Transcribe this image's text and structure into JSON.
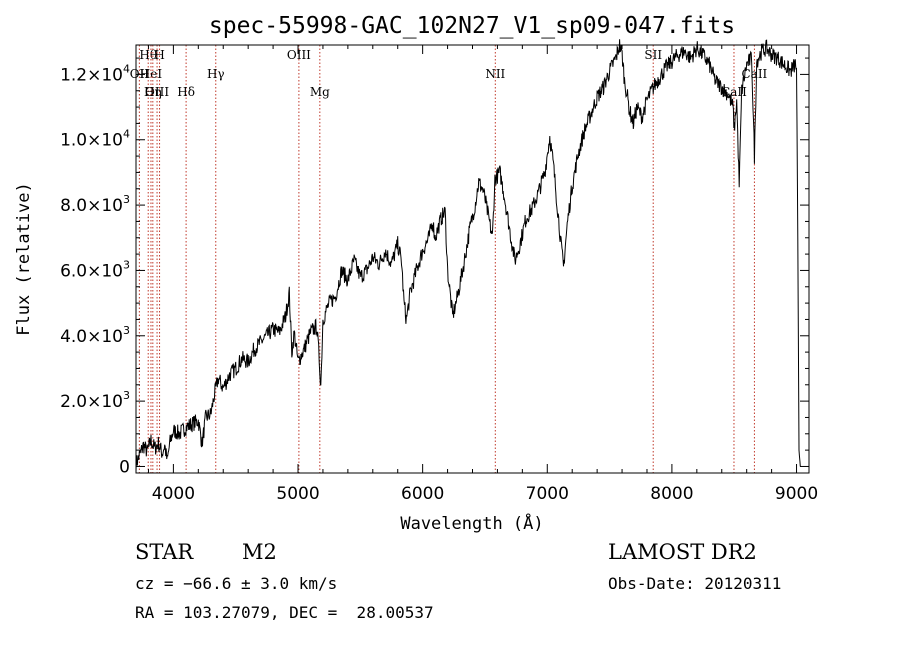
{
  "chart_data": {
    "type": "line",
    "title": "spec-55998-GAC_102N27_V1_sp09-047.fits",
    "xlabel": "Wavelength (Å)",
    "ylabel": "Flux (relative)",
    "xlim": [
      3700,
      9100
    ],
    "ylim": [
      -200,
      12900
    ],
    "x_ticks": [
      {
        "value": 4000,
        "label": "4000"
      },
      {
        "value": 5000,
        "label": "5000"
      },
      {
        "value": 6000,
        "label": "6000"
      },
      {
        "value": 7000,
        "label": "7000"
      },
      {
        "value": 8000,
        "label": "8000"
      },
      {
        "value": 9000,
        "label": "9000"
      }
    ],
    "y_ticks": [
      {
        "value": 0,
        "mant": "0",
        "exp": ""
      },
      {
        "value": 2000,
        "mant": "2.0×10",
        "exp": "3"
      },
      {
        "value": 4000,
        "mant": "4.0×10",
        "exp": "3"
      },
      {
        "value": 6000,
        "mant": "6.0×10",
        "exp": "3"
      },
      {
        "value": 8000,
        "mant": "8.0×10",
        "exp": "3"
      },
      {
        "value": 10000,
        "mant": "1.0×10",
        "exp": "4"
      },
      {
        "value": 12000,
        "mant": "1.2×10",
        "exp": "4"
      }
    ],
    "spectral_lines": [
      {
        "label": "Hθ",
        "x": 3798,
        "row": 0
      },
      {
        "label": "H",
        "x": 3889,
        "row": 0
      },
      {
        "label": "OII",
        "x": 3727,
        "row": 1
      },
      {
        "label": "HeI",
        "x": 3820,
        "row": 1
      },
      {
        "label": "Hγ",
        "x": 4340,
        "row": 1
      },
      {
        "label": "OIII",
        "x": 3869,
        "row": 2
      },
      {
        "label": "Hη",
        "x": 3835,
        "row": 2
      },
      {
        "label": "Hδ",
        "x": 4102,
        "row": 2
      },
      {
        "label": "OIII",
        "x": 5007,
        "row": 0
      },
      {
        "label": "Mg",
        "x": 5175,
        "row": 2
      },
      {
        "label": "NII",
        "x": 6583,
        "row": 1
      },
      {
        "label": "SII",
        "x": 7850,
        "row": 0
      },
      {
        "label": "CaII",
        "x": 8498,
        "row": 2
      },
      {
        "label": "CaII",
        "x": 8662,
        "row": 1
      }
    ],
    "spectrum": [
      [
        3700,
        100
      ],
      [
        3730,
        350
      ],
      [
        3760,
        650
      ],
      [
        3790,
        450
      ],
      [
        3820,
        800
      ],
      [
        3850,
        550
      ],
      [
        3880,
        700
      ],
      [
        3910,
        400
      ],
      [
        3930,
        650
      ],
      [
        3950,
        150
      ],
      [
        3970,
        700
      ],
      [
        4000,
        1100
      ],
      [
        4050,
        1000
      ],
      [
        4100,
        1200
      ],
      [
        4150,
        1300
      ],
      [
        4200,
        1400
      ],
      [
        4230,
        700
      ],
      [
        4260,
        1500
      ],
      [
        4300,
        1600
      ],
      [
        4330,
        2200
      ],
      [
        4360,
        2700
      ],
      [
        4400,
        2400
      ],
      [
        4450,
        2800
      ],
      [
        4500,
        3000
      ],
      [
        4550,
        3300
      ],
      [
        4600,
        3200
      ],
      [
        4650,
        3600
      ],
      [
        4700,
        3800
      ],
      [
        4750,
        4000
      ],
      [
        4800,
        4200
      ],
      [
        4850,
        4100
      ],
      [
        4900,
        4600
      ],
      [
        4930,
        5300
      ],
      [
        4950,
        3500
      ],
      [
        4970,
        4100
      ],
      [
        5000,
        3200
      ],
      [
        5050,
        3600
      ],
      [
        5100,
        4100
      ],
      [
        5150,
        4300
      ],
      [
        5170,
        3300
      ],
      [
        5183,
        2500
      ],
      [
        5200,
        4500
      ],
      [
        5250,
        5000
      ],
      [
        5300,
        5200
      ],
      [
        5350,
        6000
      ],
      [
        5400,
        5700
      ],
      [
        5450,
        6300
      ],
      [
        5500,
        5800
      ],
      [
        5550,
        6000
      ],
      [
        5600,
        6400
      ],
      [
        5650,
        6200
      ],
      [
        5700,
        6600
      ],
      [
        5750,
        6200
      ],
      [
        5800,
        6800
      ],
      [
        5830,
        6300
      ],
      [
        5850,
        5000
      ],
      [
        5870,
        4500
      ],
      [
        5900,
        5300
      ],
      [
        5950,
        6000
      ],
      [
        6000,
        6600
      ],
      [
        6050,
        7000
      ],
      [
        6080,
        7500
      ],
      [
        6100,
        7000
      ],
      [
        6150,
        7600
      ],
      [
        6180,
        7800
      ],
      [
        6200,
        6000
      ],
      [
        6240,
        4600
      ],
      [
        6280,
        5200
      ],
      [
        6330,
        6200
      ],
      [
        6380,
        7300
      ],
      [
        6420,
        8000
      ],
      [
        6450,
        8700
      ],
      [
        6480,
        8500
      ],
      [
        6500,
        8200
      ],
      [
        6530,
        7600
      ],
      [
        6560,
        7000
      ],
      [
        6580,
        8800
      ],
      [
        6620,
        9000
      ],
      [
        6650,
        8400
      ],
      [
        6700,
        7200
      ],
      [
        6740,
        6300
      ],
      [
        6780,
        6800
      ],
      [
        6830,
        7600
      ],
      [
        6880,
        7900
      ],
      [
        6930,
        8400
      ],
      [
        6980,
        9000
      ],
      [
        7020,
        10100
      ],
      [
        7050,
        9200
      ],
      [
        7080,
        8000
      ],
      [
        7110,
        6800
      ],
      [
        7130,
        6100
      ],
      [
        7160,
        7400
      ],
      [
        7200,
        8600
      ],
      [
        7250,
        9600
      ],
      [
        7300,
        10300
      ],
      [
        7350,
        10800
      ],
      [
        7400,
        11300
      ],
      [
        7450,
        11600
      ],
      [
        7500,
        12100
      ],
      [
        7550,
        12500
      ],
      [
        7580,
        12900
      ],
      [
        7600,
        12600
      ],
      [
        7620,
        11800
      ],
      [
        7640,
        11400
      ],
      [
        7660,
        10900
      ],
      [
        7690,
        10500
      ],
      [
        7720,
        11000
      ],
      [
        7760,
        10700
      ],
      [
        7800,
        11200
      ],
      [
        7850,
        11600
      ],
      [
        7900,
        11900
      ],
      [
        7950,
        12200
      ],
      [
        8000,
        12400
      ],
      [
        8050,
        12600
      ],
      [
        8100,
        12700
      ],
      [
        8150,
        12500
      ],
      [
        8200,
        12800
      ],
      [
        8250,
        12600
      ],
      [
        8300,
        12300
      ],
      [
        8350,
        11800
      ],
      [
        8400,
        11600
      ],
      [
        8450,
        11400
      ],
      [
        8490,
        11000
      ],
      [
        8500,
        10300
      ],
      [
        8520,
        11200
      ],
      [
        8540,
        8600
      ],
      [
        8560,
        11500
      ],
      [
        8600,
        12300
      ],
      [
        8640,
        12500
      ],
      [
        8662,
        9500
      ],
      [
        8680,
        12400
      ],
      [
        8720,
        12700
      ],
      [
        8760,
        12800
      ],
      [
        8800,
        12600
      ],
      [
        8850,
        12500
      ],
      [
        8900,
        12300
      ],
      [
        8950,
        12100
      ],
      [
        8990,
        12300
      ],
      [
        9000,
        12200
      ],
      [
        9010,
        7000
      ],
      [
        9020,
        500
      ],
      [
        9030,
        0
      ]
    ]
  },
  "info": {
    "object_type": "STAR",
    "subclass": "M2",
    "cz": "cz = −66.6 ± 3.0 km/s",
    "coords": "RA = 103.27079, DEC =  28.00537",
    "survey": "LAMOST DR2",
    "obs_date": "Obs-Date: 20120311"
  }
}
